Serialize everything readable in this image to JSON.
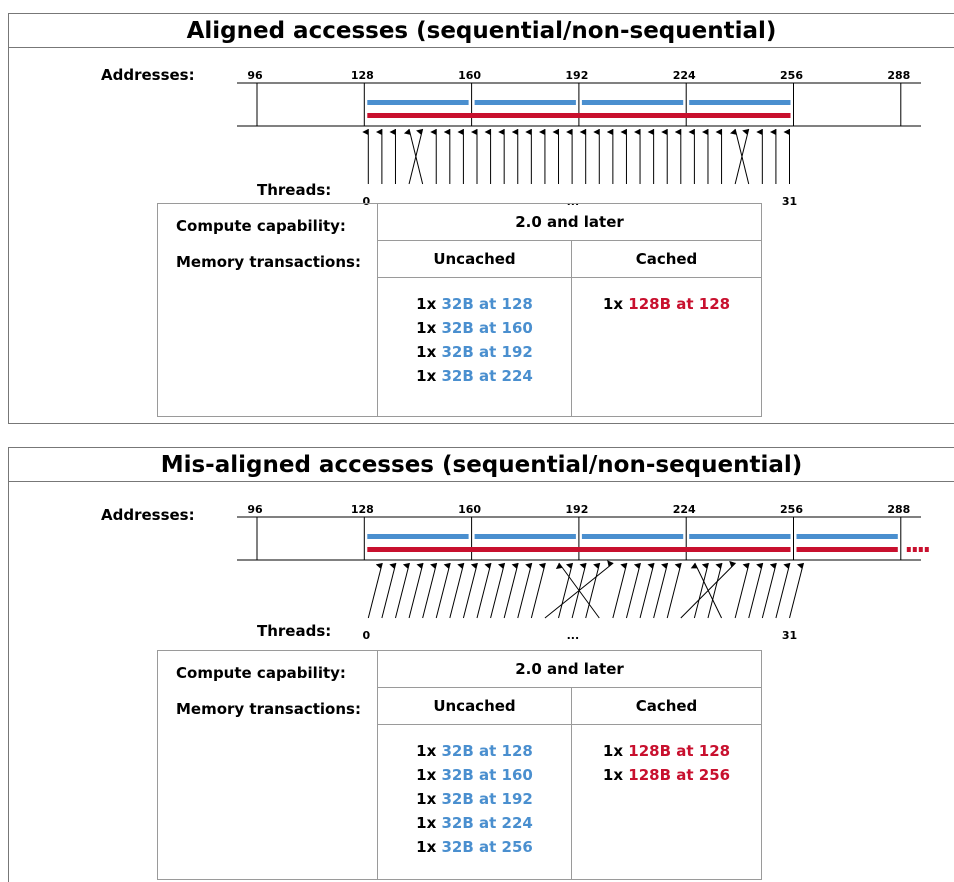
{
  "colors": {
    "uncached": "#4a8fcf",
    "cached": "#c8102e",
    "lines": "#000000"
  },
  "panels": [
    {
      "id": "aligned",
      "title": "Aligned accesses (sequential/non-sequential)",
      "addresses_label": "Addresses:",
      "addresses": [
        "96",
        "128",
        "160",
        "192",
        "224",
        "256",
        "288"
      ],
      "threads_label": "Threads:",
      "thread_labels": [
        "0",
        "...",
        "31"
      ],
      "uncached_segments": 4,
      "cached_segments": 1,
      "cached_tail": false,
      "table": {
        "compute_label": "Compute capability:",
        "compute_value": "2.0 and later",
        "memory_label": "Memory transactions:",
        "col_uncached": "Uncached",
        "col_cached": "Cached",
        "uncached": [
          {
            "count": "1x",
            "desc": "32B at 128"
          },
          {
            "count": "1x",
            "desc": "32B at 160"
          },
          {
            "count": "1x",
            "desc": "32B at 192"
          },
          {
            "count": "1x",
            "desc": "32B at 224"
          }
        ],
        "cached": [
          {
            "count": "1x",
            "desc": "128B at 128"
          }
        ]
      }
    },
    {
      "id": "misaligned",
      "title": "Mis-aligned accesses (sequential/non-sequential)",
      "addresses_label": "Addresses:",
      "addresses": [
        "96",
        "128",
        "160",
        "192",
        "224",
        "256",
        "288"
      ],
      "threads_label": "Threads:",
      "thread_labels": [
        "0",
        "...",
        "31"
      ],
      "uncached_segments": 5,
      "cached_segments": 1,
      "cached_tail": true,
      "table": {
        "compute_label": "Compute capability:",
        "compute_value": "2.0 and later",
        "memory_label": "Memory transactions:",
        "col_uncached": "Uncached",
        "col_cached": "Cached",
        "uncached": [
          {
            "count": "1x",
            "desc": "32B at 128"
          },
          {
            "count": "1x",
            "desc": "32B at 160"
          },
          {
            "count": "1x",
            "desc": "32B at 192"
          },
          {
            "count": "1x",
            "desc": "32B at 224"
          },
          {
            "count": "1x",
            "desc": "32B at 256"
          }
        ],
        "cached": [
          {
            "count": "1x",
            "desc": "128B at 128"
          },
          {
            "count": "1x",
            "desc": "128B at 256"
          }
        ]
      }
    }
  ]
}
